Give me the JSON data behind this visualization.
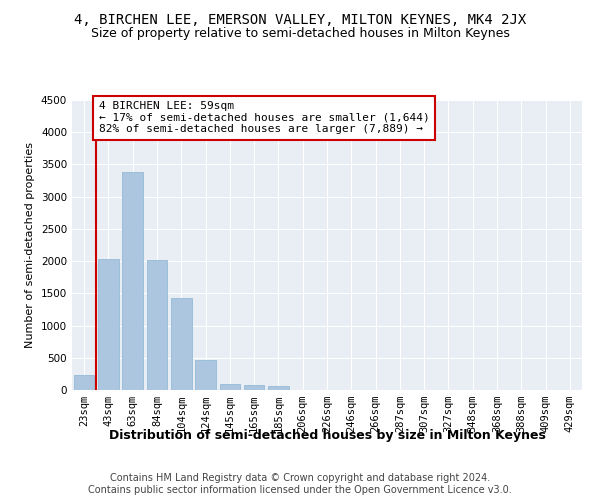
{
  "title": "4, BIRCHEN LEE, EMERSON VALLEY, MILTON KEYNES, MK4 2JX",
  "subtitle": "Size of property relative to semi-detached houses in Milton Keynes",
  "xlabel": "Distribution of semi-detached houses by size in Milton Keynes",
  "ylabel": "Number of semi-detached properties",
  "footer_line1": "Contains HM Land Registry data © Crown copyright and database right 2024.",
  "footer_line2": "Contains public sector information licensed under the Open Government Licence v3.0.",
  "annotation_title": "4 BIRCHEN LEE: 59sqm",
  "annotation_line1": "← 17% of semi-detached houses are smaller (1,644)",
  "annotation_line2": "82% of semi-detached houses are larger (7,889) →",
  "bar_labels": [
    "23sqm",
    "43sqm",
    "63sqm",
    "84sqm",
    "104sqm",
    "124sqm",
    "145sqm",
    "165sqm",
    "185sqm",
    "206sqm",
    "226sqm",
    "246sqm",
    "266sqm",
    "287sqm",
    "307sqm",
    "327sqm",
    "348sqm",
    "368sqm",
    "388sqm",
    "409sqm",
    "429sqm"
  ],
  "bar_values": [
    230,
    2030,
    3380,
    2020,
    1430,
    460,
    100,
    70,
    60,
    0,
    0,
    0,
    0,
    0,
    0,
    0,
    0,
    0,
    0,
    0,
    0
  ],
  "bar_color": "#adc6e0",
  "bar_edge_color": "#8ab4d4",
  "vline_x": 0.5,
  "vline_color": "#cc0000",
  "annotation_box_edge_color": "#cc0000",
  "background_color": "#e8eef4",
  "ylim": [
    0,
    4500
  ],
  "yticks": [
    0,
    500,
    1000,
    1500,
    2000,
    2500,
    3000,
    3500,
    4000,
    4500
  ],
  "grid_color": "#ffffff",
  "title_fontsize": 10,
  "subtitle_fontsize": 9,
  "xlabel_fontsize": 9,
  "ylabel_fontsize": 8,
  "tick_fontsize": 7.5,
  "annotation_fontsize": 8,
  "footer_fontsize": 7
}
